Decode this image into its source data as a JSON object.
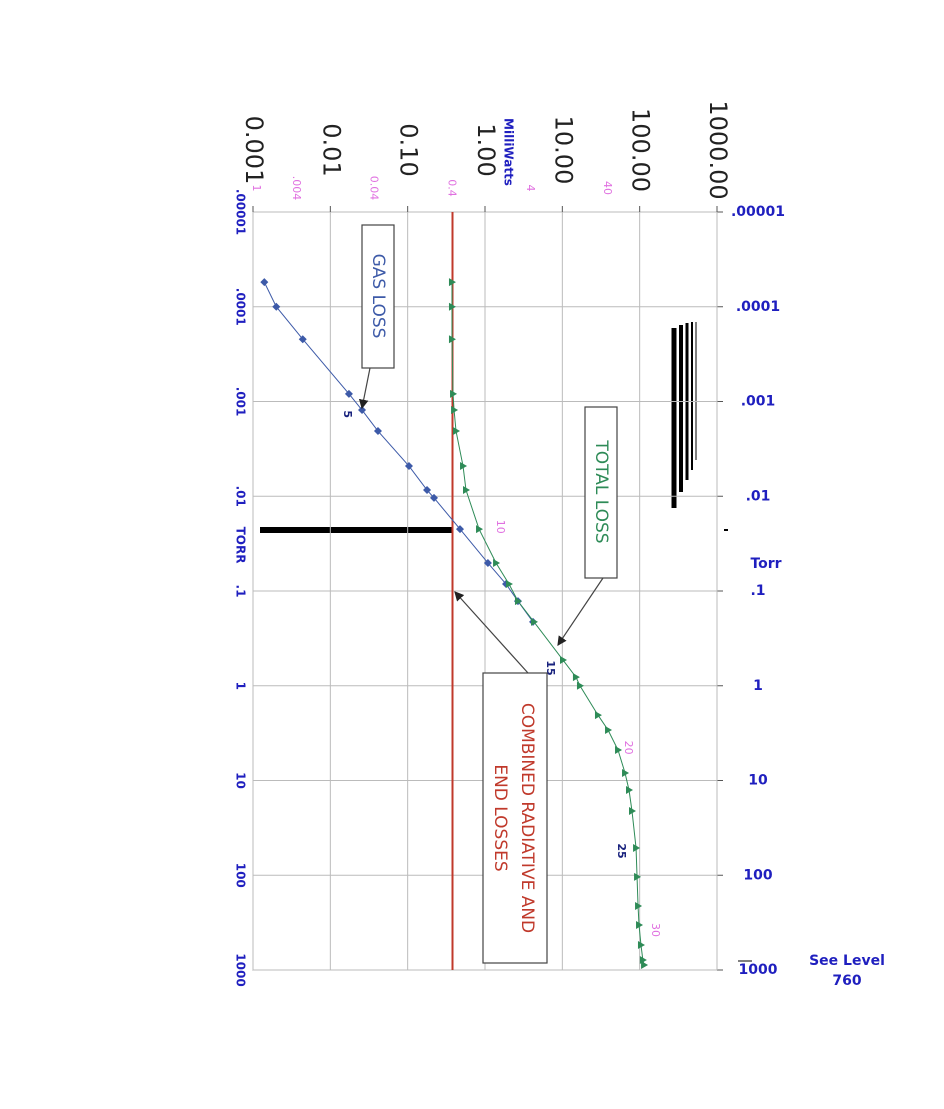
{
  "chart_data": {
    "type": "line",
    "xlabel": "TORR",
    "xlabel2": "Torr",
    "ylabel": "MilliWatts",
    "xlog": true,
    "ylog": true,
    "grid": true,
    "xlim": [
      1e-05,
      1000
    ],
    "xticks": [
      {
        "value": 1e-05,
        "label": ".00001"
      },
      {
        "value": 0.0001,
        "label": ".0001"
      },
      {
        "value": 0.001,
        "label": ".001"
      },
      {
        "value": 0.01,
        "label": ".01"
      },
      {
        "value": 0.1,
        "label": ".1"
      },
      1,
      10,
      100,
      1000
    ],
    "ylim": [
      0.001,
      1000
    ],
    "yticks": [
      0.001,
      0.01,
      {
        "value": 0.1,
        "label": "0.10"
      },
      {
        "value": 1,
        "label": "1.00"
      },
      {
        "value": 10,
        "label": "10.00"
      },
      {
        "value": 100,
        "label": "100.00"
      },
      {
        "value": 1000,
        "label": "1000.00"
      }
    ],
    "y2ticks": [
      {
        "value": 0.0011,
        "label": "1"
      },
      {
        "value": 0.0036,
        "label": ".004"
      },
      {
        "value": 0.036,
        "label": "0.04"
      },
      {
        "value": 0.37,
        "label": "0.4"
      },
      {
        "value": 3.8,
        "label": "4"
      },
      {
        "value": 38,
        "label": "40"
      }
    ],
    "y2color": "#e070e0",
    "series": [
      {
        "name": "GAS LOSS",
        "color": "#3d5aa8",
        "x": [
          5.5e-05,
          0.0001,
          0.00022,
          0.00083,
          0.00123,
          0.00205,
          0.0048,
          0.0086,
          0.0104,
          0.0222,
          0.0506,
          0.0844,
          0.128,
          0.212
        ],
        "values": [
          0.0014,
          0.002,
          0.0044,
          0.0174,
          0.0257,
          0.0413,
          0.104,
          0.178,
          0.219,
          0.475,
          1.09,
          1.87,
          2.67,
          4.18
        ]
      },
      {
        "name": "TOTAL LOSS",
        "color": "#2e8b57",
        "x": [
          5.5e-05,
          0.0001,
          0.00022,
          0.00083,
          0.00123,
          0.00205,
          0.0048,
          0.0086,
          0.0222,
          0.0506,
          0.0844,
          0.128,
          0.212,
          0.535,
          0.81,
          1.0,
          2.04,
          2.93,
          4.77,
          8.34,
          12.6,
          21,
          51.5,
          104,
          211,
          335,
          545,
          785,
          885
        ],
        "values": [
          0.374,
          0.374,
          0.374,
          0.386,
          0.398,
          0.422,
          0.52,
          0.568,
          0.837,
          1.39,
          2.04,
          2.67,
          4.3,
          10.2,
          15.0,
          16.9,
          28.9,
          39.0,
          52.5,
          64.7,
          72.8,
          79.6,
          89.8,
          92.5,
          95.3,
          98.1,
          104,
          110,
          114
        ]
      }
    ],
    "reference_line": {
      "label": [
        "COMBINED RADIATIVE AND",
        "END LOSSES"
      ],
      "value": 0.38,
      "color": "#c0392b"
    },
    "annotations": [
      {
        "text": "5",
        "x": 0.00136,
        "y": 0.0164,
        "color": "#1a237e"
      },
      {
        "text": "15",
        "x": 0.65,
        "y": 6.9,
        "color": "#1a237e"
      },
      {
        "text": "25",
        "x": 55.5,
        "y": 57.4,
        "color": "#1a237e"
      },
      {
        "text": "10",
        "x": 0.021,
        "y": 1.56,
        "color": "#e070e0"
      },
      {
        "text": "20",
        "x": 4.5,
        "y": 70.7,
        "color": "#e070e0"
      },
      {
        "text": "30",
        "x": 379,
        "y": 158,
        "color": "#e070e0"
      }
    ],
    "note": [
      "See Level",
      "760"
    ]
  }
}
